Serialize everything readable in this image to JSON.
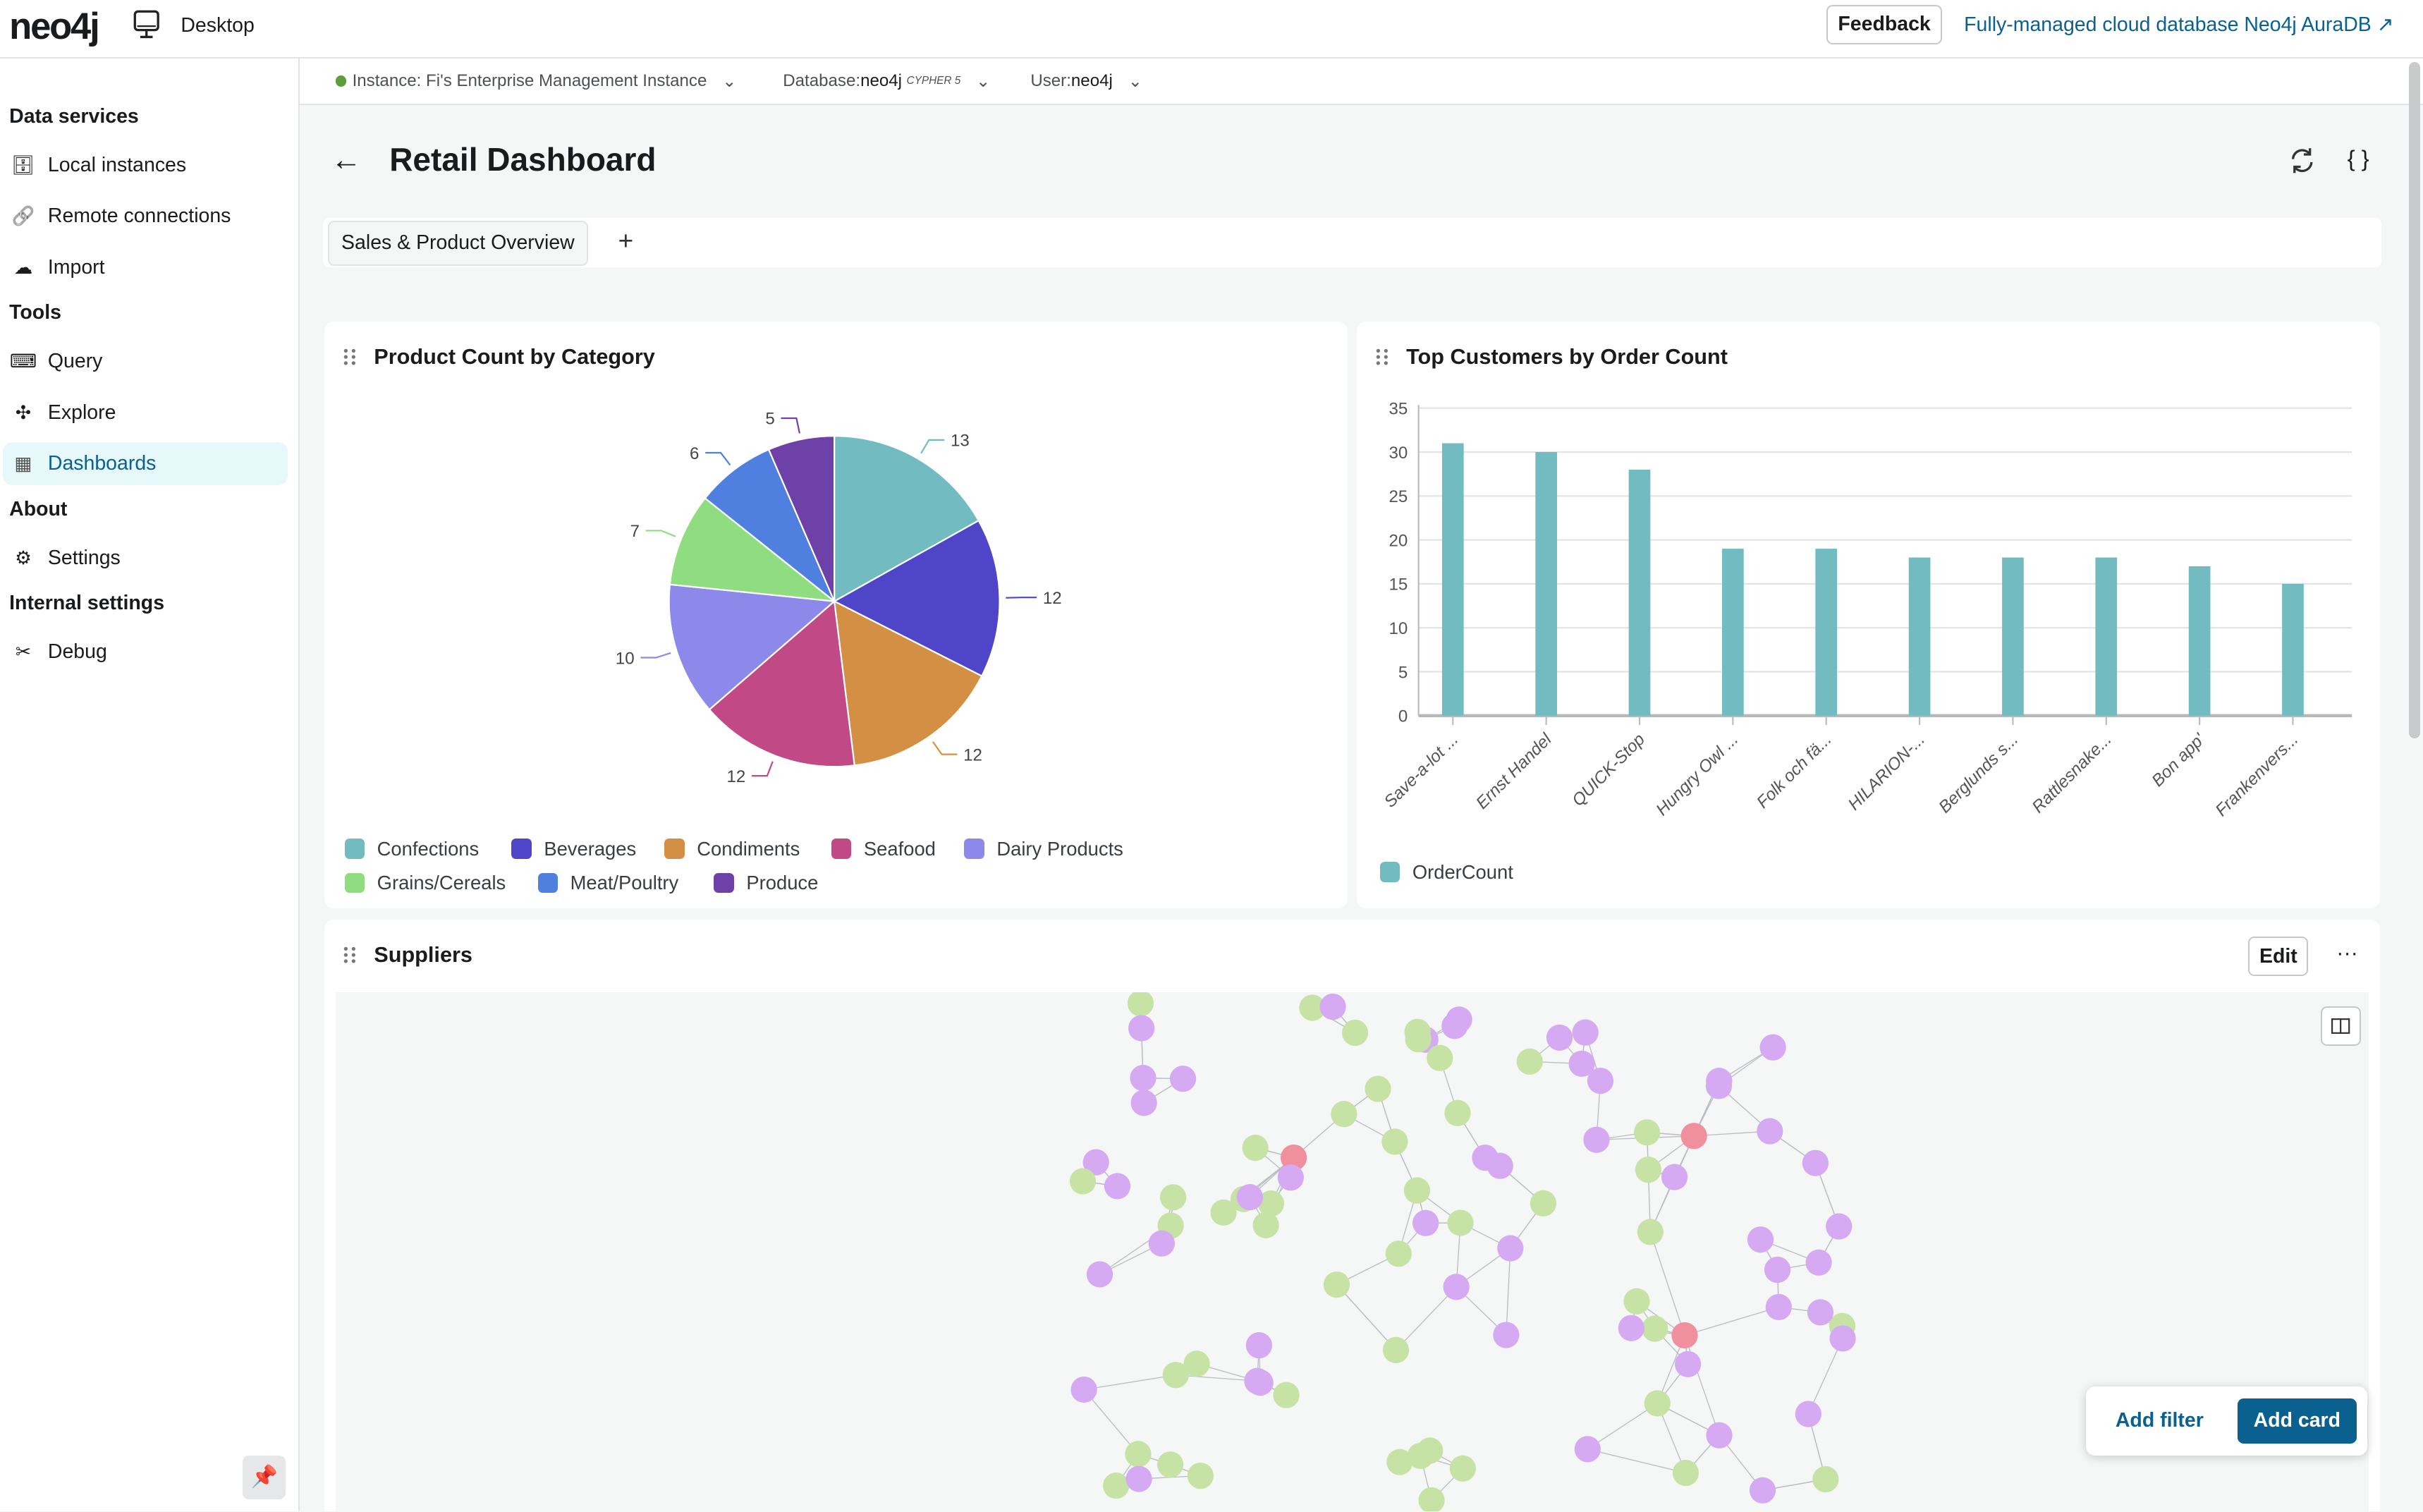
{
  "app": {
    "logo": "neo4j",
    "product": "Desktop",
    "feedback": "Feedback",
    "aura_link": "Fully-managed cloud database Neo4j AuraDB ↗"
  },
  "sidebar": {
    "sections": [
      {
        "title": "Data services",
        "items": [
          {
            "label": "Local instances",
            "icon": "database-icon"
          },
          {
            "label": "Remote connections",
            "icon": "link-icon"
          },
          {
            "label": "Import",
            "icon": "cloud-upload-icon"
          }
        ]
      },
      {
        "title": "Tools",
        "items": [
          {
            "label": "Query",
            "icon": "terminal-icon"
          },
          {
            "label": "Explore",
            "icon": "graph-icon"
          },
          {
            "label": "Dashboards",
            "icon": "dashboard-icon",
            "active": true
          }
        ]
      },
      {
        "title": "About",
        "items": [
          {
            "label": "Settings",
            "icon": "gear-icon"
          }
        ]
      },
      {
        "title": "Internal settings",
        "items": [
          {
            "label": "Debug",
            "icon": "tools-icon"
          }
        ]
      }
    ]
  },
  "context": {
    "instance": "Instance: Fi's Enterprise Management Instance",
    "database_label": "Database: ",
    "database": "neo4j",
    "cypher": "CYPHER 5",
    "user_label": "User: ",
    "user": "neo4j",
    "status_color": "#5c9e3b"
  },
  "dashboard": {
    "title": "Retail Dashboard",
    "tabs": [
      {
        "label": "Sales & Product Overview"
      }
    ],
    "add_tab": "+"
  },
  "cards": {
    "pie_title": "Product Count by Category",
    "bar_title": "Top Customers by Order Count",
    "suppliers_title": "Suppliers",
    "edit": "Edit",
    "more": "···"
  },
  "actions": {
    "add_filter": "Add filter",
    "add_card": "Add card"
  },
  "chart_data": [
    {
      "type": "pie",
      "categories": [
        "Confections",
        "Beverages",
        "Condiments",
        "Seafood",
        "Dairy Products",
        "Grains/Cereals",
        "Meat/Poultry",
        "Produce"
      ],
      "values": [
        13,
        12,
        12,
        12,
        10,
        7,
        6,
        5
      ],
      "colors": [
        "#72bcc1",
        "#4e45c8",
        "#d38f43",
        "#c14a86",
        "#8c89ea",
        "#90dc81",
        "#4f80e0",
        "#6e41a9"
      ],
      "legend": "bottom"
    },
    {
      "type": "bar",
      "categories": [
        "Save-a-lot ...",
        "Ernst Handel",
        "QUICK-Stop",
        "Hungry Owl ...",
        "Folk och fä...",
        "HILARION-...",
        "Berglunds s...",
        "Rattlesnake...",
        "Bon app'",
        "Frankenvers..."
      ],
      "series": [
        {
          "name": "OrderCount",
          "values": [
            31,
            30,
            28,
            19,
            19,
            18,
            18,
            18,
            17,
            15
          ],
          "color": "#72bcc1"
        }
      ],
      "yticks": [
        0,
        5,
        10,
        15,
        20,
        25,
        30,
        35
      ],
      "ylim": [
        0,
        35
      ],
      "grid": true,
      "legend": "bottom-left"
    }
  ],
  "graph": {
    "node_colors": {
      "supplier": "#f0909f",
      "product": "#d6aaf2",
      "category": "#c6e3a5"
    }
  }
}
